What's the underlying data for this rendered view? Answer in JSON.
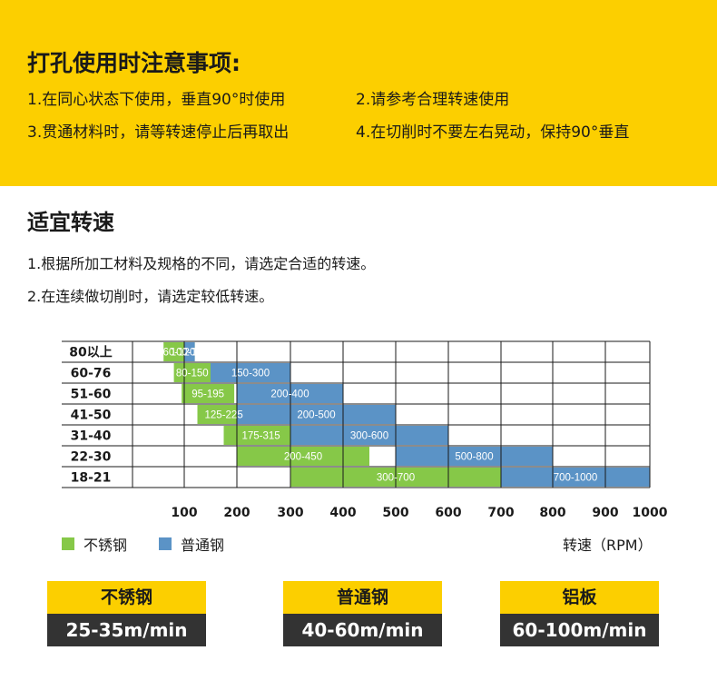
{
  "notice": {
    "title": "打孔使用时注意事项:",
    "items": [
      "1.在同心状态下使用，垂直90°时使用",
      "2.请参考合理转速使用",
      "3.贯通材料时，请等转速停止后再取出",
      "4.在切削时不要左右晃动，保持90°垂直"
    ]
  },
  "speed_section": {
    "title": "适宜转速",
    "lines": [
      "1.根据所加工材料及规格的不同，请选定合适的转速。",
      "2.在连续做切削时，请选定较低转速。"
    ]
  },
  "legend": {
    "stainless": "不锈钢",
    "regular": "普通钢",
    "unit": "转速（RPM）"
  },
  "colors": {
    "accent_yellow": "#fccf00",
    "stainless_green": "#86c848",
    "regular_blue": "#5b93c6",
    "dark": "#333333"
  },
  "cards": [
    {
      "material": "不锈钢",
      "speed": "25-35m/min"
    },
    {
      "material": "普通钢",
      "speed": "40-60m/min"
    },
    {
      "material": "铝板",
      "speed": "60-100m/min"
    }
  ],
  "chart_data": {
    "type": "bar",
    "orientation": "horizontal-range",
    "categories": [
      "80以上",
      "60-76",
      "51-60",
      "41-50",
      "31-40",
      "22-30",
      "18-21"
    ],
    "x_ticks": [
      "100",
      "200",
      "300",
      "400",
      "500",
      "600",
      "700",
      "800",
      "900",
      "1000"
    ],
    "xlabel": "转速（RPM）",
    "series": [
      {
        "name": "不锈钢",
        "color": "#86c848",
        "ranges": [
          {
            "label": "60-120",
            "start": 60,
            "end": 120
          },
          {
            "label": "80-150",
            "start": 80,
            "end": 150
          },
          {
            "label": "95-195",
            "start": 95,
            "end": 195
          },
          {
            "label": "125-225",
            "start": 125,
            "end": 225
          },
          {
            "label": "175-315",
            "start": 175,
            "end": 315
          },
          {
            "label": "200-450",
            "start": 200,
            "end": 450
          },
          {
            "label": "300-700",
            "start": 300,
            "end": 700
          }
        ]
      },
      {
        "name": "普通钢",
        "color": "#5b93c6",
        "ranges": [
          {
            "label": "100-120",
            "start": 100,
            "end": 120
          },
          {
            "label": "150-300",
            "start": 150,
            "end": 300
          },
          {
            "label": "200-400",
            "start": 200,
            "end": 400
          },
          {
            "label": "200-500",
            "start": 200,
            "end": 500
          },
          {
            "label": "300-600",
            "start": 300,
            "end": 600
          },
          {
            "label": "500-800",
            "start": 500,
            "end": 800
          },
          {
            "label": "700-1000",
            "start": 700,
            "end": 1000
          }
        ]
      }
    ]
  }
}
